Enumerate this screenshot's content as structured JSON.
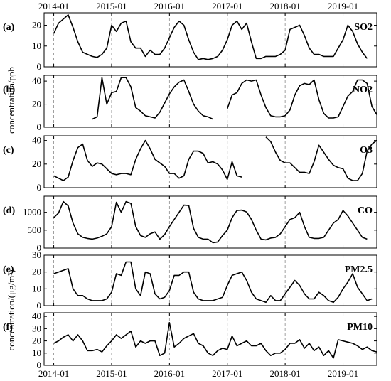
{
  "chart_data": {
    "type": "line",
    "x_tick_labels": [
      "2014-01",
      "2015-01",
      "2016-01",
      "2017-01",
      "2018-01",
      "2019-01"
    ],
    "x_tick_months": [
      0,
      12,
      24,
      36,
      48,
      60
    ],
    "xlim_months": [
      -2,
      67
    ],
    "guides_at_ticks": true,
    "y_axis_labels": [
      {
        "text": "concentration/ppb",
        "panels": [
          0,
          1,
          2
        ]
      },
      {
        "text": "concentration/(μg/m³)",
        "panels": [
          4,
          5
        ]
      }
    ],
    "panels": [
      {
        "letter": "(a)",
        "name": "SO2",
        "ylim": [
          0,
          26
        ],
        "yticks": [
          0,
          10,
          20
        ],
        "values": [
          16,
          21,
          23,
          25,
          19,
          12,
          7,
          6,
          5,
          4.5,
          6,
          9,
          20,
          17,
          21,
          22,
          12,
          9,
          9,
          5,
          8,
          6,
          6,
          9,
          14,
          19,
          22,
          20,
          13,
          7,
          3.5,
          4,
          3.5,
          4,
          5,
          8,
          13,
          20,
          22,
          18,
          21,
          12,
          4,
          4,
          5,
          5,
          5,
          6,
          8,
          18,
          19,
          20,
          15,
          9,
          6,
          6,
          5,
          5,
          5,
          9,
          13,
          20,
          17,
          11,
          7,
          4
        ]
      },
      {
        "letter": "(b)",
        "name": "NO2",
        "ylim": [
          0,
          45
        ],
        "yticks": [
          0,
          20,
          40
        ],
        "values": [
          null,
          null,
          null,
          null,
          null,
          null,
          null,
          null,
          7,
          9,
          43,
          20,
          30,
          31,
          43,
          43,
          35,
          17,
          14,
          10,
          9,
          8,
          13,
          21,
          29,
          35,
          39,
          41,
          31,
          20,
          14,
          10,
          9,
          7,
          null,
          null,
          16,
          28,
          30,
          38,
          41,
          40,
          41,
          28,
          17,
          10,
          9,
          9,
          10,
          15,
          28,
          36,
          38,
          37,
          41,
          24,
          12,
          8,
          8,
          9,
          18,
          27,
          31,
          41,
          41,
          38,
          18,
          11
        ]
      },
      {
        "letter": "(c)",
        "name": "O3",
        "ylim": [
          0,
          44
        ],
        "yticks": [
          0,
          20,
          40
        ],
        "values": [
          10,
          8,
          6,
          9,
          23,
          34,
          37,
          23,
          18,
          21,
          20,
          16,
          12,
          11,
          12,
          12,
          11,
          24,
          33,
          40,
          33,
          24,
          21,
          18,
          12,
          12,
          8,
          10,
          24,
          31,
          31,
          29,
          21,
          22,
          20,
          15,
          7,
          22,
          10,
          9,
          null,
          null,
          null,
          null,
          43,
          39,
          30,
          23,
          21,
          21,
          17,
          13,
          13,
          12,
          22,
          36,
          30,
          24,
          19,
          17,
          16,
          8,
          6,
          6,
          12,
          31,
          37,
          40
        ]
      },
      {
        "letter": "(d)",
        "name": "CO",
        "ylim": [
          0,
          1450
        ],
        "yticks": [
          0,
          500,
          1000
        ],
        "values": [
          850,
          980,
          1300,
          1180,
          700,
          400,
          300,
          270,
          250,
          280,
          330,
          400,
          600,
          1280,
          1000,
          1300,
          1250,
          600,
          350,
          300,
          400,
          450,
          250,
          380,
          600,
          800,
          1000,
          1200,
          1190,
          550,
          300,
          250,
          250,
          150,
          170,
          350,
          500,
          850,
          1050,
          1060,
          1010,
          800,
          500,
          250,
          230,
          280,
          300,
          400,
          600,
          800,
          850,
          1000,
          600,
          300,
          270,
          270,
          300,
          500,
          700,
          800,
          1050,
          900,
          700,
          500,
          300,
          250
        ]
      },
      {
        "letter": "(e)",
        "name": "PM2.5",
        "ylim": [
          0,
          30
        ],
        "yticks": [
          0,
          10,
          20,
          30
        ],
        "values": [
          19,
          20,
          21,
          22,
          10,
          6,
          6,
          4,
          3,
          3,
          3,
          4,
          8,
          19,
          18,
          26,
          26,
          10,
          6,
          20,
          19,
          7,
          4,
          5,
          9,
          18,
          18,
          20,
          20,
          8,
          4,
          3,
          3,
          3,
          4,
          5,
          12,
          18,
          19,
          20,
          15,
          8,
          4,
          3,
          2,
          6,
          3,
          3,
          7,
          11,
          15,
          12,
          7,
          4,
          4,
          8,
          6,
          3,
          2,
          5,
          10,
          14,
          19,
          11,
          7,
          3,
          4
        ]
      },
      {
        "letter": "(f)",
        "name": "PM10",
        "ylim": [
          0,
          43
        ],
        "yticks": [
          0,
          10,
          20,
          30,
          40
        ],
        "values": [
          18,
          20,
          23,
          25,
          20,
          25,
          20,
          12,
          12,
          13,
          11,
          16,
          20,
          25,
          22,
          25,
          28,
          15,
          20,
          18,
          20,
          20,
          8,
          10,
          35,
          15,
          18,
          22,
          24,
          26,
          18,
          16,
          10,
          8,
          12,
          14,
          13,
          24,
          16,
          18,
          20,
          16,
          16,
          18,
          12,
          8,
          10,
          10,
          13,
          18,
          18,
          21,
          14,
          18,
          12,
          15,
          8,
          12,
          6,
          21,
          20,
          19,
          18,
          16,
          13,
          15,
          12,
          11
        ]
      }
    ]
  }
}
